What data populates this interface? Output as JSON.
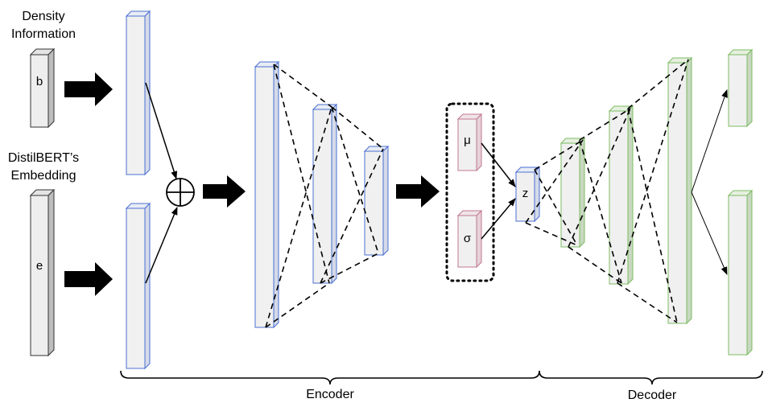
{
  "inputs": {
    "density_label_line1": "Density",
    "density_label_line2": "Information",
    "density_symbol": "b",
    "embedding_label_line1": "DistilBERT’s",
    "embedding_label_line2": "Embedding",
    "embedding_symbol": "e"
  },
  "latent": {
    "mu": "μ",
    "sigma": "σ",
    "z": "z"
  },
  "sections": {
    "encoder": "Encoder",
    "decoder": "Decoder"
  },
  "colors": {
    "input_block_face": "#eeeeee",
    "input_block_edge": "#333333",
    "encoder_edge": "#4a6fd1",
    "encoder_side": "#d4dae8",
    "latent_edge": "#c0788f",
    "latent_side": "#e6d2d8",
    "decoder_edge": "#7cbb62",
    "decoder_side": "#c8d8c0",
    "block_face": "#f0f0f0"
  },
  "icons": {
    "combine": "circle-plus-icon",
    "flow": "thick-arrow-icon"
  }
}
